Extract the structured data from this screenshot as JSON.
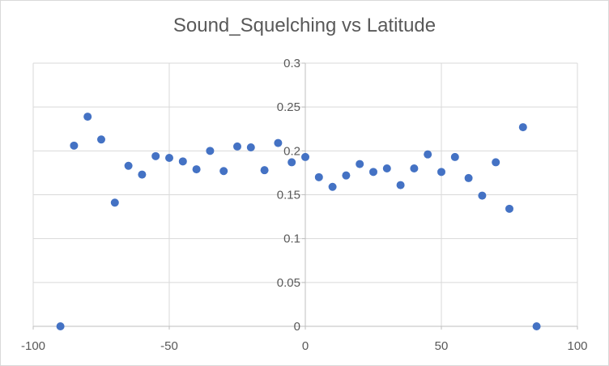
{
  "chart_data": {
    "type": "scatter",
    "title": "Sound_Squelching  vs Latitude",
    "xlabel": "",
    "ylabel": "",
    "xlim": [
      -100,
      100
    ],
    "ylim": [
      0,
      0.3
    ],
    "x_ticks": [
      "-100",
      "-50",
      "0",
      "50",
      "100"
    ],
    "y_ticks": [
      "0",
      "0.05",
      "0.1",
      "0.15",
      "0.2",
      "0.25",
      "0.3"
    ],
    "grid": true,
    "legend": "none",
    "marker_color": "#4472c4",
    "series": [
      {
        "x": [
          -90,
          -85,
          -80,
          -75,
          -70,
          -65,
          -60,
          -55,
          -50,
          -45,
          -40,
          -35,
          -30,
          -25,
          -20,
          -15,
          -10,
          -5,
          0,
          5,
          10,
          15,
          20,
          25,
          30,
          35,
          40,
          45,
          50,
          55,
          60,
          65,
          70,
          75,
          80,
          85
        ],
        "values": [
          0,
          0.206,
          0.239,
          0.213,
          0.141,
          0.183,
          0.173,
          0.194,
          0.192,
          0.188,
          0.179,
          0.2,
          0.177,
          0.205,
          0.204,
          0.178,
          0.209,
          0.187,
          0.193,
          0.17,
          0.159,
          0.172,
          0.185,
          0.176,
          0.18,
          0.161,
          0.18,
          0.196,
          0.176,
          0.193,
          0.169,
          0.149,
          0.187,
          0.134,
          0.227,
          0
        ]
      }
    ]
  }
}
